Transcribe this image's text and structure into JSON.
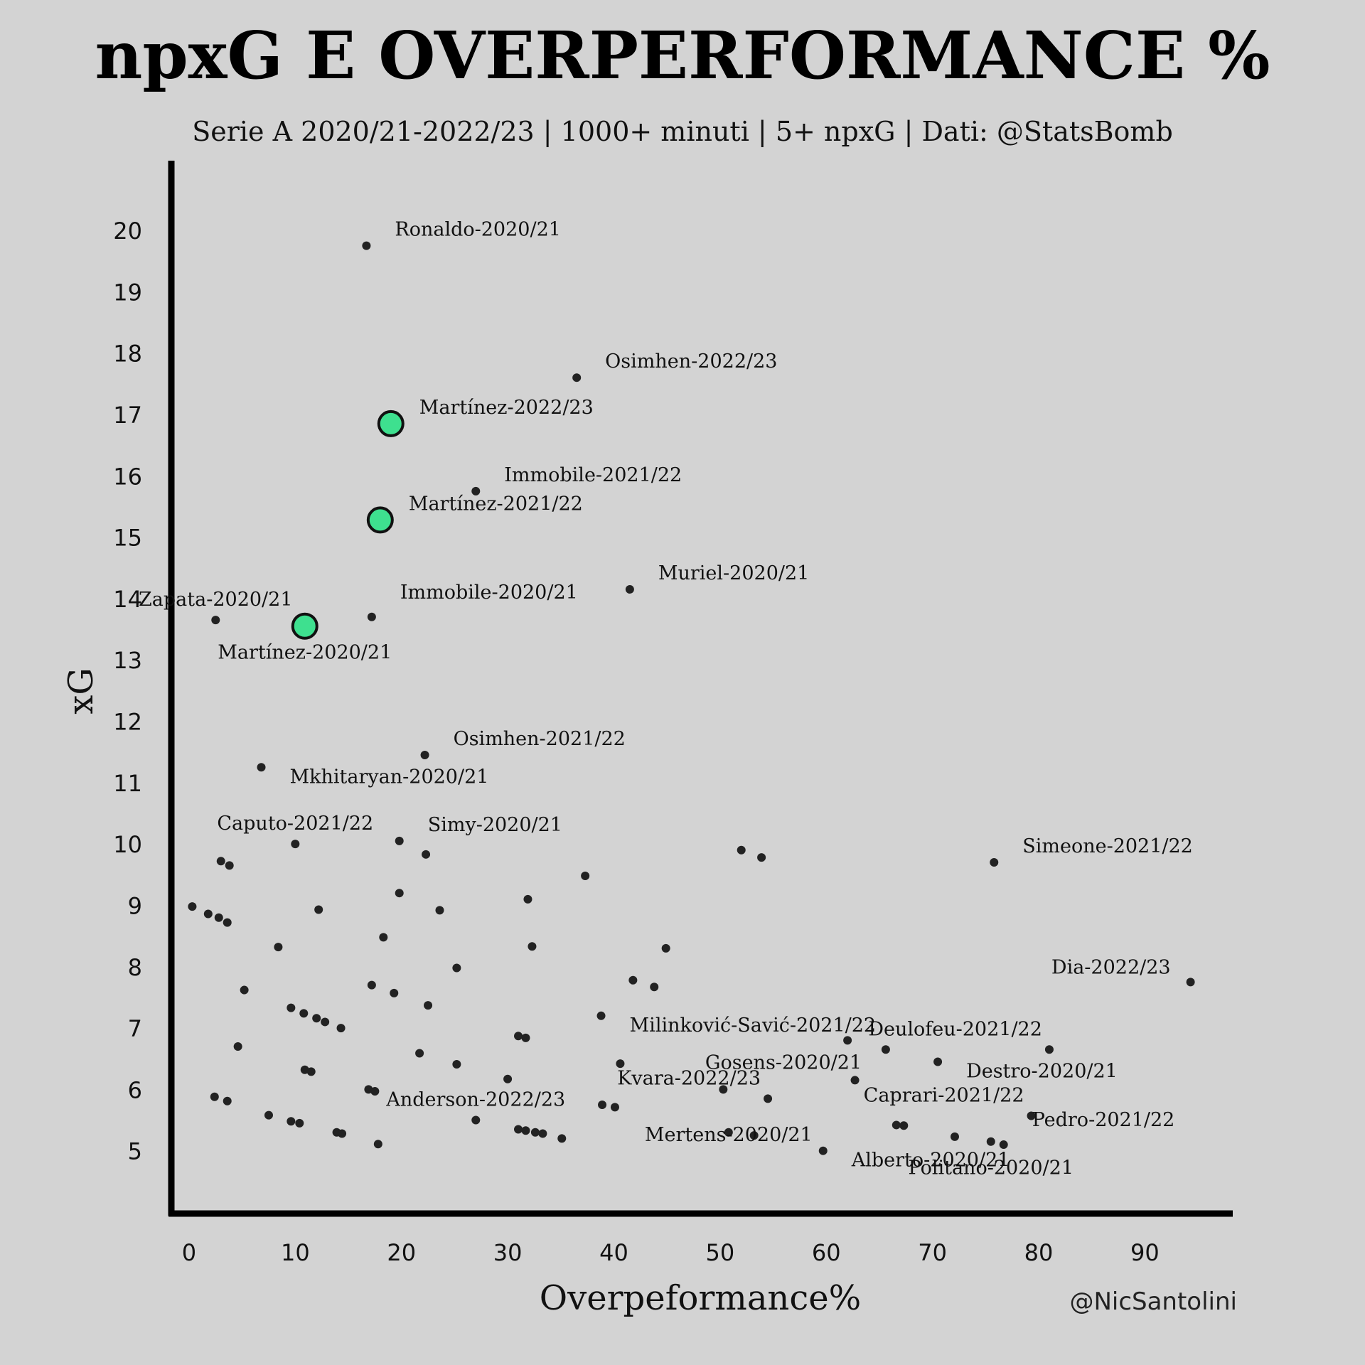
{
  "chart_data": {
    "type": "scatter",
    "title": "npxG E OVERPERFORMANCE %",
    "subtitle": "Serie A 2020/21-2022/23 | 1000+ minuti | 5+ npxG | Dati: @StatsBomb",
    "xlabel": "Overpeformance%",
    "ylabel": "xG",
    "xlim": [
      -1,
      96
    ],
    "ylim": [
      4,
      20.8
    ],
    "xticks": [
      0,
      10,
      20,
      30,
      40,
      50,
      60,
      70,
      80,
      90
    ],
    "yticks": [
      5,
      6,
      7,
      8,
      9,
      10,
      11,
      12,
      13,
      14,
      15,
      16,
      17,
      18,
      19,
      20
    ],
    "credit": "@NicSantolini",
    "colors": {
      "background": "#d3d3d3",
      "point": "#222222",
      "highlight": "#3ee08f",
      "axis": "#000000"
    },
    "labeled_points": [
      {
        "x": 16.7,
        "y": 19.75,
        "label": "Ronaldo-2020/21",
        "anchor": "right"
      },
      {
        "x": 36.5,
        "y": 17.6,
        "label": "Osimhen-2022/23",
        "anchor": "right"
      },
      {
        "x": 27.0,
        "y": 15.75,
        "label": "Immobile-2021/22",
        "anchor": "right"
      },
      {
        "x": 41.5,
        "y": 14.15,
        "label": "Muriel-2020/21",
        "anchor": "right"
      },
      {
        "x": 2.5,
        "y": 13.65,
        "label": "Zapata-2020/21",
        "anchor": "above"
      },
      {
        "x": 17.2,
        "y": 13.7,
        "label": "Immobile-2020/21",
        "anchor": "right-up"
      },
      {
        "x": 22.2,
        "y": 11.45,
        "label": "Osimhen-2021/22",
        "anchor": "right"
      },
      {
        "x": 6.8,
        "y": 11.25,
        "label": "Mkhitaryan-2020/21",
        "anchor": "below-right"
      },
      {
        "x": 10.0,
        "y": 10.0,
        "label": "Caputo-2021/22",
        "anchor": "above"
      },
      {
        "x": 19.8,
        "y": 10.05,
        "label": "Simy-2020/21",
        "anchor": "right"
      },
      {
        "x": 75.8,
        "y": 9.7,
        "label": "Simeone-2021/22",
        "anchor": "right"
      },
      {
        "x": 94.3,
        "y": 7.75,
        "label": "Dia-2022/23",
        "anchor": "left"
      },
      {
        "x": 38.8,
        "y": 7.2,
        "label": "Milinković-Savić-2021/22",
        "anchor": "right-down"
      },
      {
        "x": 81.0,
        "y": 6.65,
        "label": "Deulofeu-2021/22",
        "anchor": "above-left"
      },
      {
        "x": 62.0,
        "y": 6.8,
        "label": "Gosens-2020/21",
        "anchor": "left-down"
      },
      {
        "x": 70.5,
        "y": 6.45,
        "label": "Destro-2020/21",
        "anchor": "right-down"
      },
      {
        "x": 54.5,
        "y": 5.85,
        "label": "Kvara-2022/23",
        "anchor": "above-left"
      },
      {
        "x": 79.3,
        "y": 5.57,
        "label": "Caprari-2021/22",
        "anchor": "above-left"
      },
      {
        "x": 76.7,
        "y": 5.1,
        "label": "Pedro-2021/22",
        "anchor": "right-up"
      },
      {
        "x": 27.0,
        "y": 5.5,
        "label": "Anderson-2022/23",
        "anchor": "above"
      },
      {
        "x": 50.8,
        "y": 5.3,
        "label": "Mertens-2020/21",
        "anchor": "center"
      },
      {
        "x": 59.7,
        "y": 5.0,
        "label": "Alberto-2020/21",
        "anchor": "below-right"
      },
      {
        "x": 75.5,
        "y": 5.15,
        "label": "Politano-2020/21",
        "anchor": "below"
      }
    ],
    "highlighted_points": [
      {
        "x": 19.0,
        "y": 16.85,
        "label": "Martínez-2022/23",
        "anchor": "right"
      },
      {
        "x": 18.0,
        "y": 15.28,
        "label": "Martínez-2021/22",
        "anchor": "right"
      },
      {
        "x": 10.9,
        "y": 13.55,
        "label": "Martínez-2020/21",
        "anchor": "below"
      }
    ],
    "other_points": [
      [
        52.0,
        9.9
      ],
      [
        53.9,
        9.78
      ],
      [
        22.3,
        9.83
      ],
      [
        3.0,
        9.72
      ],
      [
        3.8,
        9.65
      ],
      [
        37.3,
        9.48
      ],
      [
        0.3,
        8.98
      ],
      [
        1.8,
        8.86
      ],
      [
        2.8,
        8.8
      ],
      [
        3.6,
        8.72
      ],
      [
        12.2,
        8.93
      ],
      [
        19.8,
        9.2
      ],
      [
        23.6,
        8.92
      ],
      [
        31.9,
        9.1
      ],
      [
        18.3,
        8.48
      ],
      [
        8.4,
        8.32
      ],
      [
        32.3,
        8.33
      ],
      [
        44.9,
        8.3
      ],
      [
        25.2,
        7.98
      ],
      [
        41.8,
        7.78
      ],
      [
        43.8,
        7.67
      ],
      [
        5.2,
        7.62
      ],
      [
        17.2,
        7.7
      ],
      [
        19.3,
        7.57
      ],
      [
        9.6,
        7.33
      ],
      [
        10.8,
        7.24
      ],
      [
        12.0,
        7.16
      ],
      [
        12.8,
        7.1
      ],
      [
        14.3,
        7.0
      ],
      [
        22.5,
        7.37
      ],
      [
        4.6,
        6.7
      ],
      [
        21.7,
        6.59
      ],
      [
        31.0,
        6.87
      ],
      [
        31.7,
        6.84
      ],
      [
        40.6,
        6.42
      ],
      [
        65.6,
        6.65
      ],
      [
        25.2,
        6.41
      ],
      [
        10.9,
        6.32
      ],
      [
        11.5,
        6.29
      ],
      [
        30.0,
        6.17
      ],
      [
        62.7,
        6.15
      ],
      [
        16.9,
        6.0
      ],
      [
        17.5,
        5.97
      ],
      [
        2.4,
        5.88
      ],
      [
        3.6,
        5.81
      ],
      [
        7.5,
        5.58
      ],
      [
        9.6,
        5.48
      ],
      [
        10.4,
        5.45
      ],
      [
        38.9,
        5.75
      ],
      [
        40.1,
        5.71
      ],
      [
        66.6,
        5.42
      ],
      [
        67.3,
        5.41
      ],
      [
        13.9,
        5.3
      ],
      [
        14.4,
        5.28
      ],
      [
        17.8,
        5.11
      ],
      [
        31.0,
        5.35
      ],
      [
        31.7,
        5.33
      ],
      [
        32.6,
        5.3
      ],
      [
        33.3,
        5.28
      ],
      [
        35.1,
        5.2
      ],
      [
        53.2,
        5.25
      ],
      [
        72.1,
        5.23
      ],
      [
        50.3,
        6.0
      ]
    ]
  }
}
